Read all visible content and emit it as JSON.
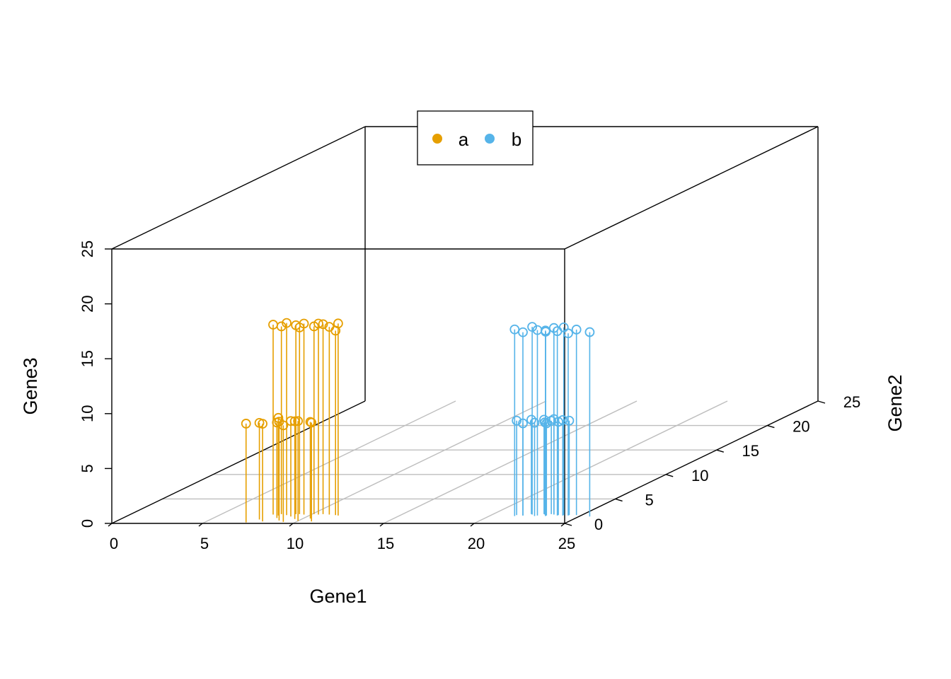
{
  "chart_data": {
    "type": "scatter",
    "subtype": "3d-scatter-with-drop-lines",
    "title": "",
    "xlabel": "Gene1",
    "ylabel": "Gene2",
    "zlabel": "Gene3",
    "xlim": [
      0,
      25
    ],
    "ylim": [
      0,
      25
    ],
    "zlim": [
      0,
      25
    ],
    "x_ticks": [
      "0",
      "5",
      "10",
      "15",
      "20",
      "25"
    ],
    "y_ticks": [
      "0",
      "5",
      "10",
      "15",
      "20",
      "25"
    ],
    "z_ticks": [
      "0",
      "5",
      "10",
      "15",
      "20",
      "25"
    ],
    "grid": "floor-only",
    "legend": {
      "position": "top-center",
      "entries": [
        "a",
        "b"
      ]
    },
    "series": [
      {
        "name": "a",
        "color": "#E69F00",
        "points": [
          {
            "x": 7.3,
            "y": 0.2,
            "z": 9.0
          },
          {
            "x": 7.7,
            "y": 0.8,
            "z": 8.8
          },
          {
            "x": 8.1,
            "y": 0.4,
            "z": 8.9
          },
          {
            "x": 8.5,
            "y": 1.1,
            "z": 8.7
          },
          {
            "x": 8.9,
            "y": 0.6,
            "z": 9.0
          },
          {
            "x": 9.3,
            "y": 0.3,
            "z": 8.8
          },
          {
            "x": 9.6,
            "y": 0.9,
            "z": 8.9
          },
          {
            "x": 10.0,
            "y": 0.5,
            "z": 9.1
          },
          {
            "x": 10.4,
            "y": 1.0,
            "z": 8.8
          },
          {
            "x": 10.8,
            "y": 0.4,
            "z": 9.0
          },
          {
            "x": 9.1,
            "y": 1.4,
            "z": 8.7
          },
          {
            "x": 8.3,
            "y": 1.6,
            "z": 8.9
          },
          {
            "x": 7.9,
            "y": 1.8,
            "z": 17.3
          },
          {
            "x": 8.3,
            "y": 1.9,
            "z": 17.1
          },
          {
            "x": 8.7,
            "y": 1.7,
            "z": 17.5
          },
          {
            "x": 9.1,
            "y": 1.9,
            "z": 17.2
          },
          {
            "x": 9.6,
            "y": 1.8,
            "z": 17.4
          },
          {
            "x": 10.1,
            "y": 1.9,
            "z": 17.1
          },
          {
            "x": 10.6,
            "y": 1.9,
            "z": 17.3
          },
          {
            "x": 11.0,
            "y": 1.8,
            "z": 17.1
          },
          {
            "x": 11.4,
            "y": 1.7,
            "z": 16.8
          },
          {
            "x": 11.6,
            "y": 1.6,
            "z": 17.5
          },
          {
            "x": 10.4,
            "y": 1.8,
            "z": 17.4
          },
          {
            "x": 9.3,
            "y": 1.9,
            "z": 17.0
          }
        ]
      },
      {
        "name": "b",
        "color": "#56B4E9",
        "points": [
          {
            "x": 21.4,
            "y": 1.7,
            "z": 8.6
          },
          {
            "x": 21.8,
            "y": 1.6,
            "z": 8.4
          },
          {
            "x": 22.1,
            "y": 1.9,
            "z": 8.6
          },
          {
            "x": 22.5,
            "y": 1.5,
            "z": 8.5
          },
          {
            "x": 22.8,
            "y": 1.9,
            "z": 8.6
          },
          {
            "x": 23.1,
            "y": 1.6,
            "z": 8.4
          },
          {
            "x": 23.4,
            "y": 1.8,
            "z": 8.7
          },
          {
            "x": 23.7,
            "y": 1.7,
            "z": 8.5
          },
          {
            "x": 24.0,
            "y": 1.6,
            "z": 8.7
          },
          {
            "x": 24.3,
            "y": 1.7,
            "z": 8.6
          },
          {
            "x": 22.9,
            "y": 1.8,
            "z": 8.4
          },
          {
            "x": 23.2,
            "y": 1.9,
            "z": 8.5
          },
          {
            "x": 21.4,
            "y": 1.5,
            "z": 17.0
          },
          {
            "x": 21.8,
            "y": 1.6,
            "z": 16.7
          },
          {
            "x": 22.2,
            "y": 1.8,
            "z": 17.1
          },
          {
            "x": 22.6,
            "y": 1.6,
            "z": 16.9
          },
          {
            "x": 23.0,
            "y": 1.7,
            "z": 16.7
          },
          {
            "x": 23.4,
            "y": 1.8,
            "z": 17.0
          },
          {
            "x": 23.7,
            "y": 1.6,
            "z": 16.8
          },
          {
            "x": 24.0,
            "y": 1.7,
            "z": 17.1
          },
          {
            "x": 24.3,
            "y": 1.6,
            "z": 16.6
          },
          {
            "x": 24.7,
            "y": 1.7,
            "z": 16.9
          },
          {
            "x": 25.6,
            "y": 1.4,
            "z": 16.8
          },
          {
            "x": 23.1,
            "y": 1.5,
            "z": 16.9
          }
        ]
      }
    ]
  }
}
